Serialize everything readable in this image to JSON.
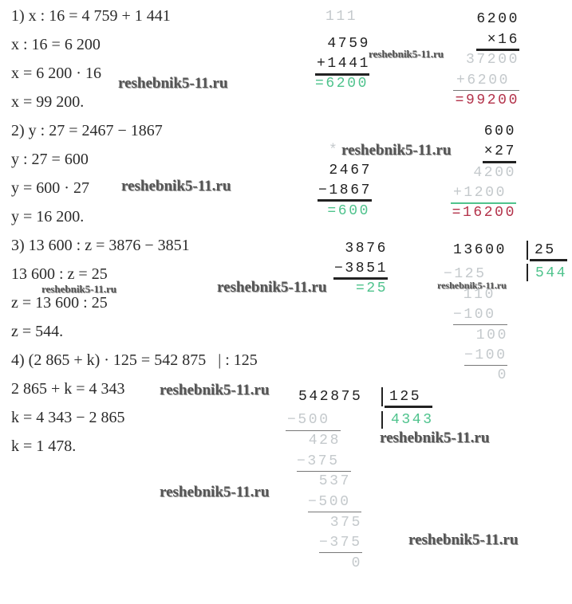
{
  "solution_lines": [
    "1) x : 16 = 4 759 + 1 441",
    "x : 16 = 6 200",
    "x = 6 200 · 16",
    "x = 99 200.",
    "2) y : 27 = 2467 − 1867",
    "y : 27 = 600",
    "y = 600 · 27",
    "y = 16 200.",
    "3) 13 600 : z = 3876 − 3851",
    "13 600 : z = 25",
    "z = 13 600 : 25",
    "z = 544.",
    "4) (2 865 + k) · 125 = 542 875   | : 125",
    "2 865 + k = 4 343",
    "k = 4 343 − 2 865",
    "k = 1 478."
  ],
  "watermark": "reshebnik5-11.ru",
  "add1": {
    "carry": "111",
    "a": "4759",
    "b": "+1441",
    "result": "=6200"
  },
  "mul1": {
    "a": "6200",
    "b": "×16",
    "p1": "37200",
    "p2": "+6200",
    "result": "=99200"
  },
  "sub2": {
    "mark": "*",
    "a": "2467",
    "b": "−1867",
    "result": "=600"
  },
  "mul2": {
    "a": "600",
    "b": "×27",
    "p1": "4200",
    "p2": "+1200",
    "result": "=16200"
  },
  "sub3": {
    "a": "3876",
    "b": "−3851",
    "result": "=25"
  },
  "div3": {
    "dividend": "13600",
    "divisor": "25",
    "quotient": "544",
    "steps": [
      "−125",
      "110",
      "−100",
      "100",
      "−100",
      "0"
    ]
  },
  "div4": {
    "dividend": "542875",
    "divisor": "125",
    "quotient": "4343",
    "steps": [
      "−500",
      "428",
      "−375",
      "537",
      "−500",
      "375",
      "−375",
      "0"
    ]
  },
  "colors": {
    "green": "#4fc38d",
    "red": "#b3324a",
    "faint": "#c4c9cc"
  }
}
